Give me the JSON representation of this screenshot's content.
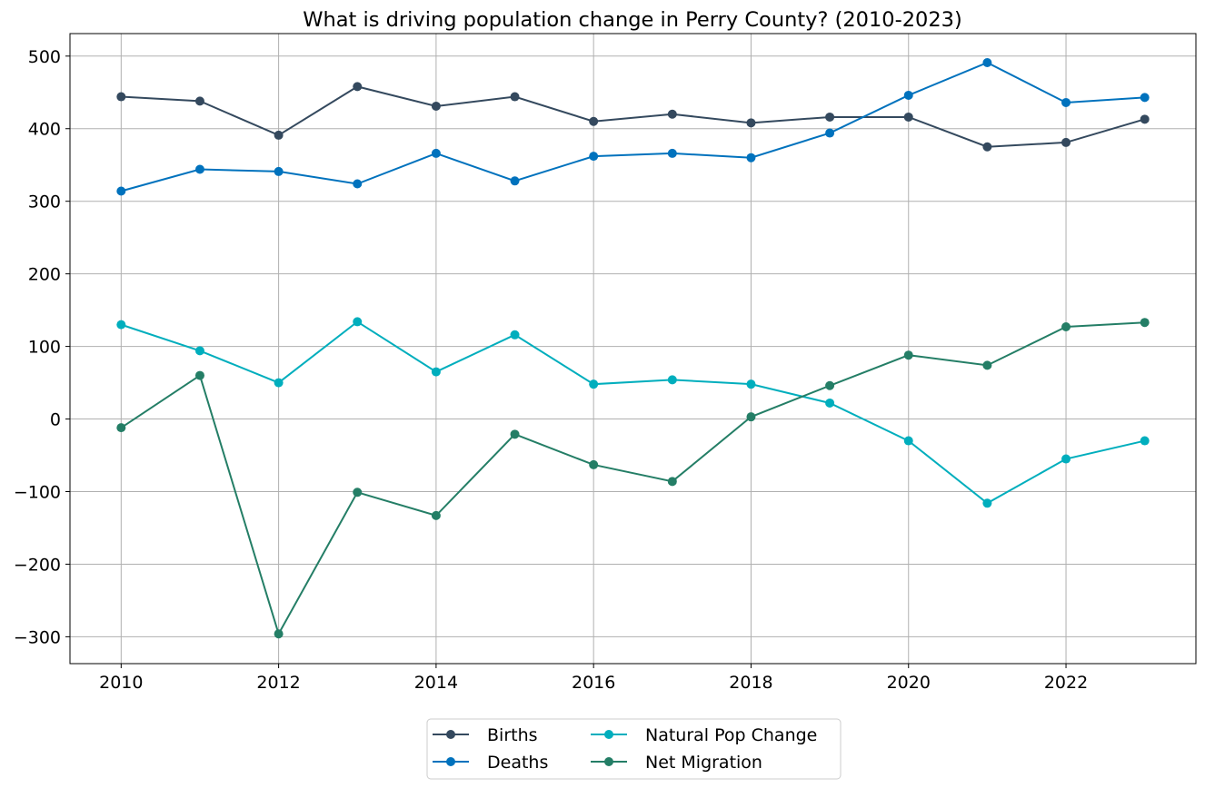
{
  "chart_data": {
    "type": "line",
    "title": "What is driving population change in Perry County? (2010-2023)",
    "xlabel": "",
    "ylabel": "",
    "x": [
      2010,
      2011,
      2012,
      2013,
      2014,
      2015,
      2016,
      2017,
      2018,
      2019,
      2020,
      2021,
      2022,
      2023
    ],
    "xlim": [
      2009.35,
      2023.65
    ],
    "ylim": [
      -337,
      531
    ],
    "x_ticks": [
      2010,
      2012,
      2014,
      2016,
      2018,
      2020,
      2022
    ],
    "x_tick_labels": [
      "2010",
      "2012",
      "2014",
      "2016",
      "2018",
      "2020",
      "2022"
    ],
    "y_ticks": [
      -300,
      -200,
      -100,
      0,
      100,
      200,
      300,
      400,
      500
    ],
    "y_tick_labels": [
      "−300",
      "−200",
      "−100",
      "0",
      "100",
      "200",
      "300",
      "400",
      "500"
    ],
    "grid": true,
    "legend_position": "bottom-center",
    "series": [
      {
        "name": "Births",
        "color": "#34495e",
        "values": [
          444,
          438,
          391,
          458,
          431,
          444,
          410,
          420,
          408,
          416,
          416,
          375,
          381,
          413
        ]
      },
      {
        "name": "Deaths",
        "color": "#0072bd",
        "values": [
          314,
          344,
          341,
          324,
          366,
          328,
          362,
          366,
          360,
          394,
          446,
          491,
          436,
          443
        ]
      },
      {
        "name": "Natural Pop Change",
        "color": "#00aebd",
        "values": [
          130,
          94,
          50,
          134,
          65,
          116,
          48,
          54,
          48,
          22,
          -30,
          -116,
          -55,
          -30
        ]
      },
      {
        "name": "Net Migration",
        "color": "#247e66",
        "values": [
          -12,
          60,
          -296,
          -101,
          -133,
          -21,
          -63,
          -86,
          3,
          46,
          88,
          74,
          127,
          133
        ]
      }
    ]
  }
}
